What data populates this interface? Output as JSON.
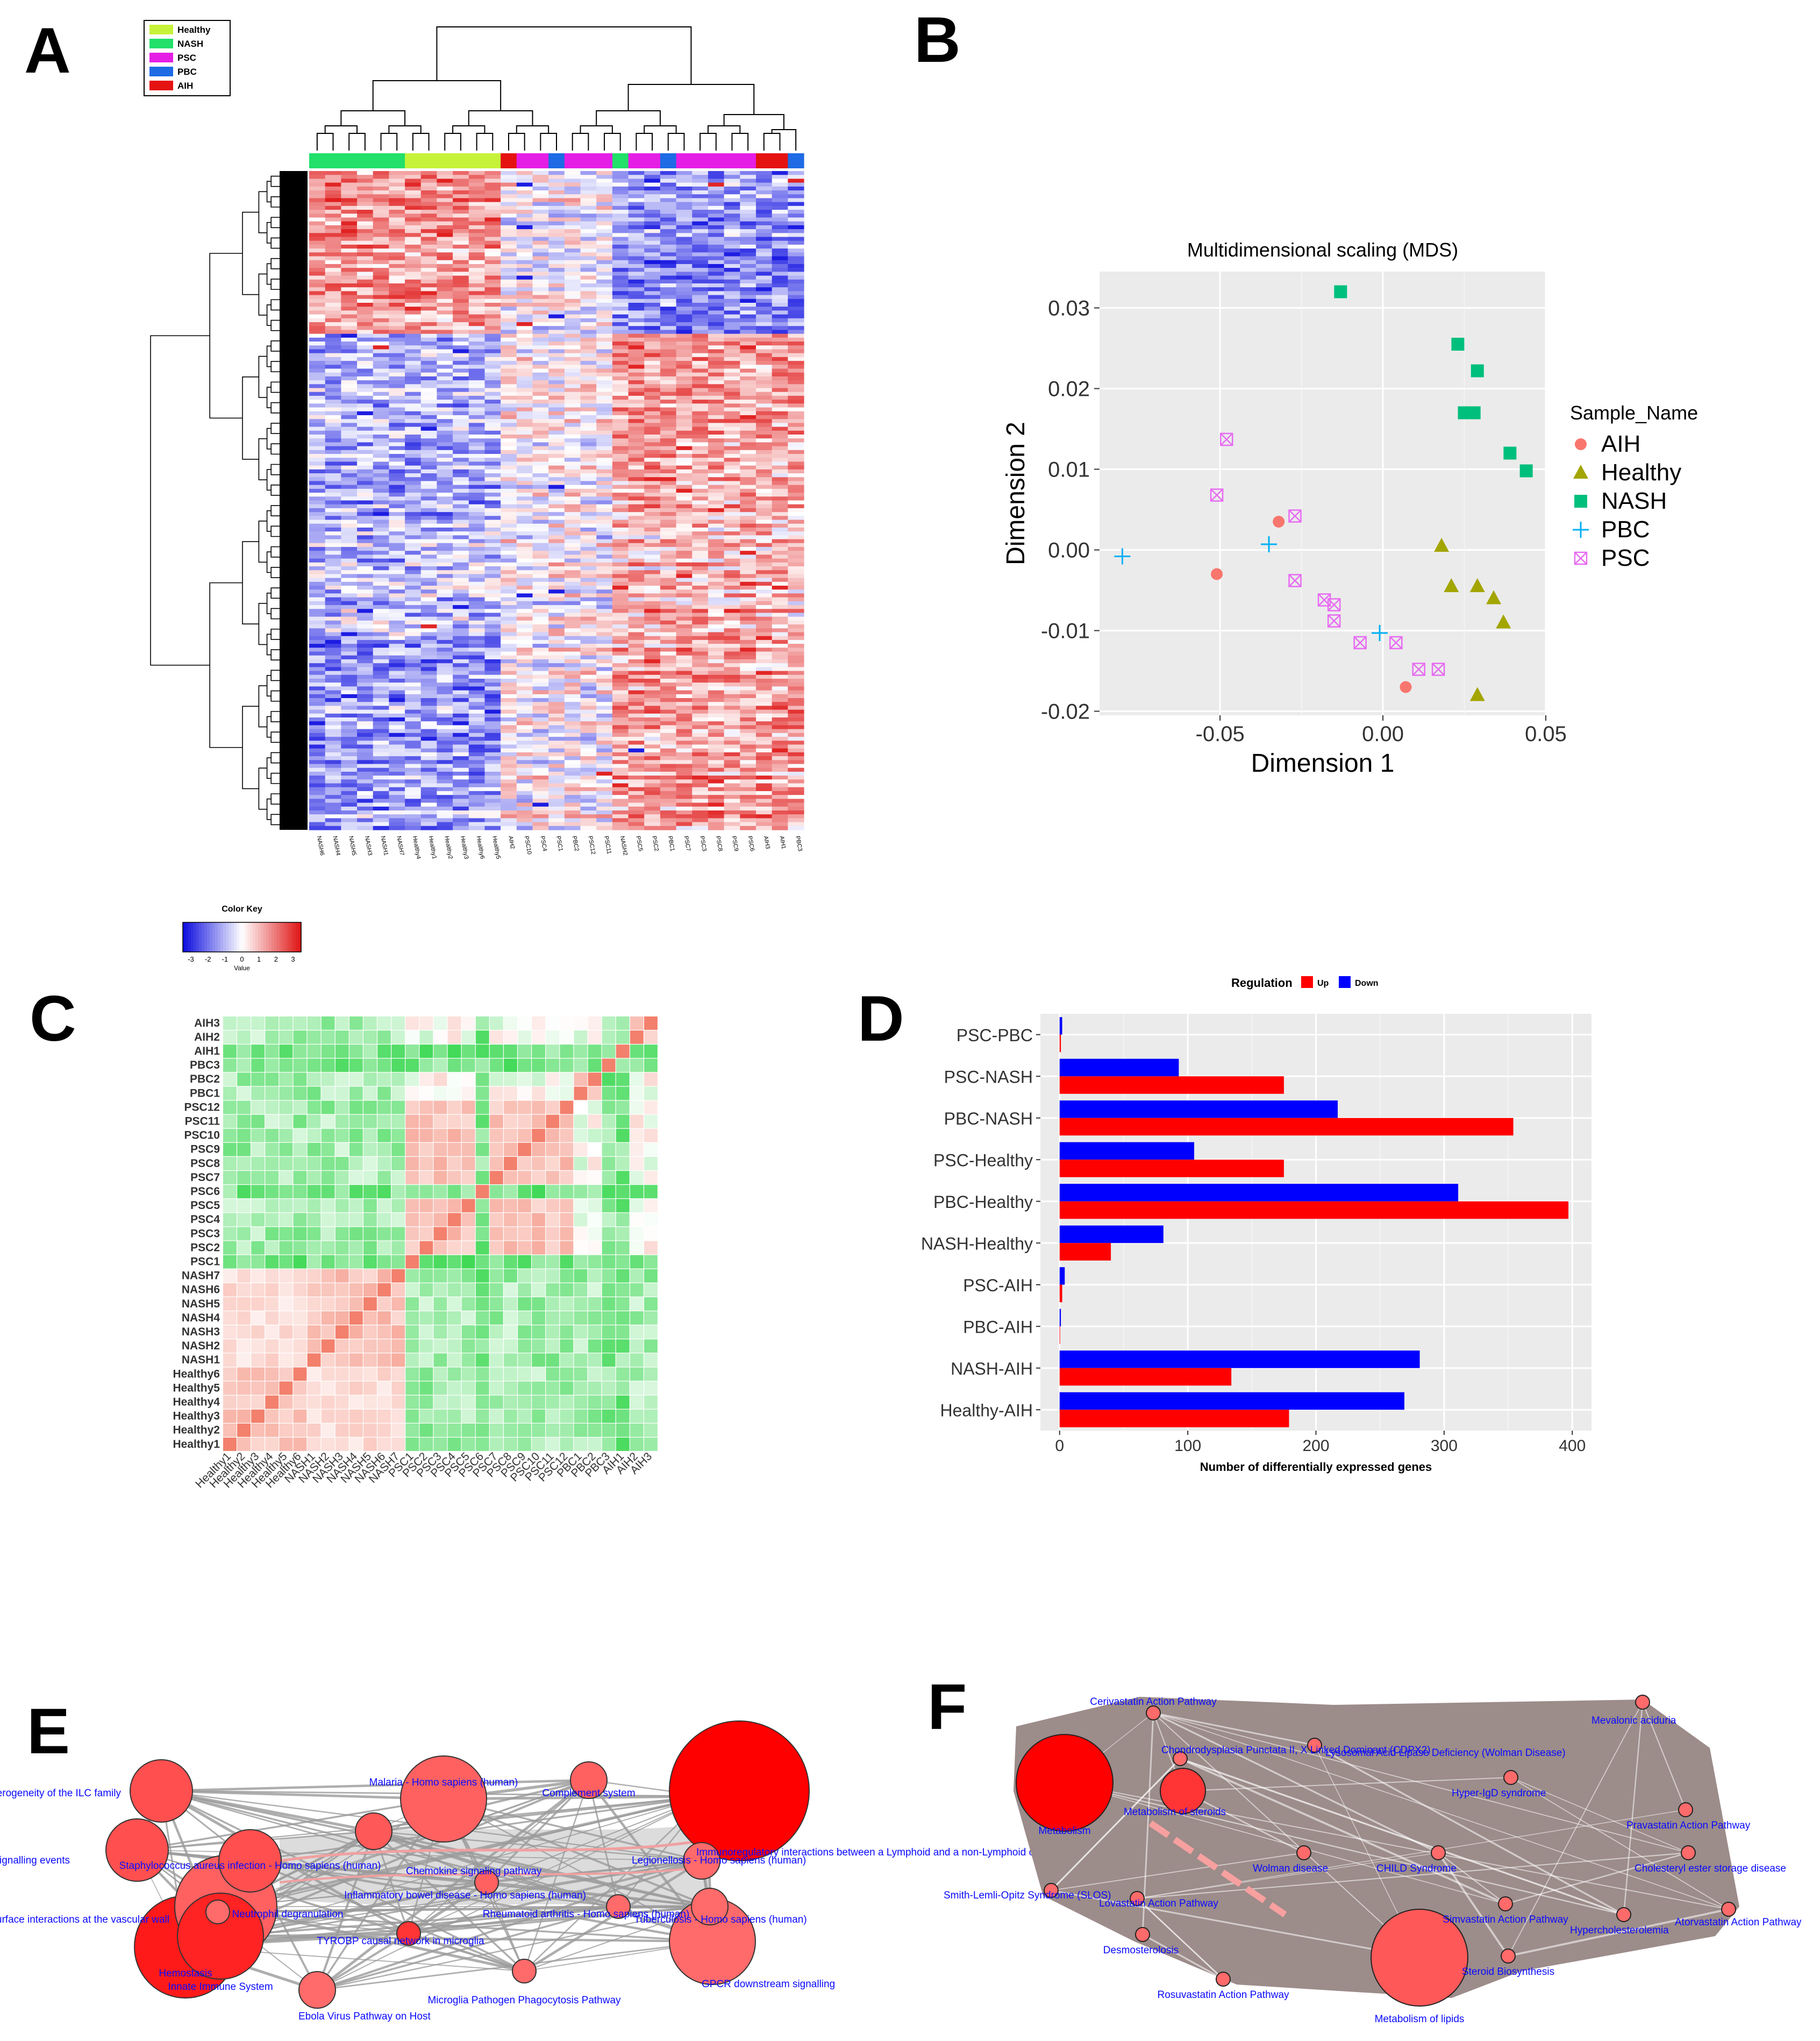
{
  "panels": {
    "A": {
      "letter": "A"
    },
    "B": {
      "letter": "B"
    },
    "C": {
      "letter": "C"
    },
    "D": {
      "letter": "D"
    },
    "E": {
      "letter": "E"
    },
    "F": {
      "letter": "F"
    }
  },
  "colors": {
    "Healthy": "#c6f23a",
    "NASH": "#22e06a",
    "PSC": "#e51ee5",
    "PBC": "#1e6be5",
    "AIH": "#e51212",
    "heat_low": "#1010e0",
    "heat_mid": "#ffffff",
    "heat_high": "#e01818",
    "up": "#ff0000",
    "down": "#0000ff",
    "mds_AIH": "#f8766d",
    "mds_Healthy": "#a3a500",
    "mds_NASH": "#00bf7d",
    "mds_PBC": "#00b0f6",
    "mds_PSC": "#e76bf3",
    "node_dark": "#ff0000",
    "node_light": "#ffb0b0",
    "edge_gray": "#9a9a9a",
    "edge_brown": "#9c8c8a",
    "label_blue": "#0a0aff"
  },
  "chart_data": [
    {
      "id": "A",
      "type": "heatmap",
      "title": "",
      "legend": {
        "entries": [
          "Healthy",
          "NASH",
          "PSC",
          "PBC",
          "AIH"
        ]
      },
      "column_groups": [
        "NASH",
        "NASH",
        "NASH",
        "NASH",
        "NASH",
        "NASH",
        "Healthy",
        "Healthy",
        "Healthy",
        "Healthy",
        "Healthy",
        "Healthy",
        "AIH",
        "PSC",
        "PSC",
        "PBC",
        "PSC",
        "PSC",
        "PSC",
        "NASH",
        "PSC",
        "PSC",
        "PBC",
        "PSC",
        "PSC",
        "PSC",
        "PSC",
        "PSC",
        "AIH",
        "AIH",
        "PBC"
      ],
      "column_labels": [
        "NASH6",
        "NASH4",
        "NASH5",
        "NASH3",
        "NASH1",
        "NASH7",
        "Healthy4",
        "Healthy1",
        "Healthy2",
        "Healthy3",
        "Healthy6",
        "Healthy5",
        "AIH2",
        "PSC10",
        "PSC4",
        "PSC1",
        "PBC2",
        "PSC12",
        "PSC11",
        "NASH2",
        "PSC5",
        "PSC2",
        "PBC1",
        "PSC7",
        "PSC3",
        "PSC8",
        "PSC9",
        "PSC6",
        "AIH3",
        "AIH1",
        "PBC3"
      ]
    },
    {
      "id": "B",
      "type": "scatter",
      "title": "Multidimensional scaling (MDS)",
      "xlabel": "Dimension 1",
      "ylabel": "Dimension 2",
      "xlim": [
        -0.087,
        0.05
      ],
      "ylim": [
        -0.0205,
        0.0345
      ],
      "xticks": [
        -0.05,
        0.0,
        0.05
      ],
      "xtick_labels": [
        "-0.05",
        "0.00",
        "0.05"
      ],
      "yticks": [
        -0.02,
        -0.01,
        0.0,
        0.01,
        0.02,
        0.03
      ],
      "ytick_labels": [
        "-0.02",
        "-0.01",
        "0.00",
        "0.01",
        "0.02",
        "0.03"
      ],
      "legend_title": "Sample_Name",
      "legend": [
        "AIH",
        "Healthy",
        "NASH",
        "PBC",
        "PSC"
      ],
      "series": [
        {
          "name": "AIH",
          "shape": "circle",
          "points": [
            [
              -0.032,
              0.0035
            ],
            [
              -0.051,
              -0.003
            ],
            [
              0.007,
              -0.017
            ]
          ]
        },
        {
          "name": "Healthy",
          "shape": "triangle",
          "points": [
            [
              0.018,
              0.0005
            ],
            [
              0.021,
              -0.0045
            ],
            [
              0.029,
              -0.0045
            ],
            [
              0.034,
              -0.006
            ],
            [
              0.037,
              -0.009
            ],
            [
              0.029,
              -0.018
            ]
          ]
        },
        {
          "name": "NASH",
          "shape": "square",
          "points": [
            [
              -0.013,
              0.032
            ],
            [
              0.023,
              0.0255
            ],
            [
              0.029,
              0.0222
            ],
            [
              0.025,
              0.017
            ],
            [
              0.028,
              0.017
            ],
            [
              0.039,
              0.012
            ],
            [
              0.044,
              0.0098
            ]
          ]
        },
        {
          "name": "PBC",
          "shape": "plus",
          "points": [
            [
              -0.08,
              -0.0008
            ],
            [
              -0.035,
              0.0007
            ],
            [
              -0.001,
              -0.0103
            ]
          ]
        },
        {
          "name": "PSC",
          "shape": "xsquare",
          "points": [
            [
              -0.048,
              0.0137
            ],
            [
              -0.051,
              0.0068
            ],
            [
              -0.027,
              0.0042
            ],
            [
              -0.027,
              -0.0038
            ],
            [
              -0.018,
              -0.0062
            ],
            [
              -0.015,
              -0.0068
            ],
            [
              -0.015,
              -0.0088
            ],
            [
              -0.007,
              -0.0115
            ],
            [
              0.004,
              -0.0115
            ],
            [
              0.011,
              -0.0148
            ],
            [
              0.017,
              -0.0148
            ]
          ]
        }
      ]
    },
    {
      "id": "C",
      "type": "heatmap",
      "color_key": {
        "title": "Color Key",
        "xlabel": "Value",
        "ticks": [
          "-3",
          "-2",
          "-1",
          "0",
          "1",
          "2",
          "3"
        ]
      },
      "row_labels": [
        "AIH3",
        "AIH2",
        "AIH1",
        "PBC3",
        "PBC2",
        "PBC1",
        "PSC12",
        "PSC11",
        "PSC10",
        "PSC9",
        "PSC8",
        "PSC7",
        "PSC6",
        "PSC5",
        "PSC4",
        "PSC3",
        "PSC2",
        "PSC1",
        "NASH7",
        "NASH6",
        "NASH5",
        "NASH4",
        "NASH3",
        "NASH2",
        "NASH1",
        "Healthy6",
        "Healthy5",
        "Healthy4",
        "Healthy3",
        "Healthy2",
        "Healthy1"
      ],
      "column_labels": [
        "Healthy1",
        "Healthy2",
        "Healthy3",
        "Healthy4",
        "Healthy5",
        "Healthy6",
        "NASH1",
        "NASH2",
        "NASH3",
        "NASH4",
        "NASH5",
        "NASH6",
        "NASH7",
        "PSC1",
        "PSC2",
        "PSC3",
        "PSC4",
        "PSC5",
        "PSC6",
        "PSC7",
        "PSC8",
        "PSC9",
        "PSC10",
        "PSC11",
        "PSC12",
        "PBC1",
        "PBC2",
        "PBC3",
        "AIH1",
        "AIH2",
        "AIH3"
      ]
    },
    {
      "id": "D",
      "type": "bar",
      "orientation": "horizontal",
      "legend_title": "Regulation",
      "legend": [
        "Up",
        "Down"
      ],
      "xlabel": "Number of differentially expressed genes",
      "xlim": [
        -15,
        415
      ],
      "xticks": [
        0,
        100,
        200,
        300,
        400
      ],
      "xtick_labels": [
        "0",
        "100",
        "200",
        "300",
        "400"
      ],
      "categories": [
        "PSC-PBC",
        "PSC-NASH",
        "PBC-NASH",
        "PSC-Healthy",
        "PBC-Healthy",
        "NASH-Healthy",
        "PSC-AIH",
        "PBC-AIH",
        "NASH-AIH",
        "Healthy-AIH"
      ],
      "series": [
        {
          "name": "Down",
          "values": [
            2,
            93,
            217,
            105,
            311,
            81,
            4,
            1,
            281,
            269
          ]
        },
        {
          "name": "Up",
          "values": [
            1,
            175,
            354,
            175,
            397,
            40,
            2,
            0,
            134,
            179
          ]
        }
      ]
    },
    {
      "id": "E",
      "type": "network",
      "nodes": [
        {
          "label": "Development and heterogeneity of the ILC family",
          "size": 3,
          "shade": 0.55
        },
        {
          "label": "G alpha (i) signalling events",
          "size": 3,
          "shade": 0.55
        },
        {
          "label": "Cell surface interactions at the vascular wall",
          "size": 1,
          "shade": 0.4
        },
        {
          "label": "Staphylococcus aureus infection - Homo sapiens (human)",
          "size": 3,
          "shade": 0.55
        },
        {
          "label": "Neutrophil degranulation",
          "size": 5,
          "shade": 0.45
        },
        {
          "label": "Hemostasis",
          "size": 5,
          "shade": 0.85
        },
        {
          "label": "Innate Immune System",
          "size": 4,
          "shade": 0.8
        },
        {
          "label": "Malaria - Homo sapiens (human)",
          "size": 4,
          "shade": 0.45
        },
        {
          "label": "Complement system",
          "size": 2,
          "shade": 0.45
        },
        {
          "label": "Chemokine signaling pathway",
          "size": 2,
          "shade": 0.5
        },
        {
          "label": "Immunoregulatory interactions between a Lymphoid and a non-Lymphoid cell",
          "size": 3,
          "shade": 1.0
        },
        {
          "label": "Inflammatory bowel disease - Homo sapiens (human)",
          "size": 1,
          "shade": 0.45
        },
        {
          "label": "Legionellosis - Homo sapiens (human)",
          "size": 2,
          "shade": 0.4
        },
        {
          "label": "Rheumatoid arthritis - Homo sapiens (human)",
          "size": 1,
          "shade": 0.4
        },
        {
          "label": "Tuberculosis - Homo sapiens (human)",
          "size": 2,
          "shade": 0.4
        },
        {
          "label": "TYROBP causal network in microglia",
          "size": 1,
          "shade": 0.7
        },
        {
          "label": "GPCR downstream signalling",
          "size": 4,
          "shade": 0.4
        },
        {
          "label": "Ebola Virus Pathway on Host",
          "size": 2,
          "shade": 0.4
        },
        {
          "label": "Microglia Pathogen Phagocytosis Pathway",
          "size": 1,
          "shade": 0.4
        }
      ]
    },
    {
      "id": "F",
      "type": "network",
      "nodes": [
        {
          "label": "Cerivastatin Action Pathway",
          "size": 1,
          "shade": 0.4
        },
        {
          "label": "Chondrodysplasia Punctata II, X Linked Dominant (CDPX2)",
          "size": 1,
          "shade": 0.4
        },
        {
          "label": "Lysosomal Acid Lipase Deficiency (Wolman Disease)",
          "size": 1,
          "shade": 0.4
        },
        {
          "label": "Mevalonic aciduria",
          "size": 1,
          "shade": 0.4
        },
        {
          "label": "Hyper-IgD syndrome",
          "size": 1,
          "shade": 0.4
        },
        {
          "label": "Metabolism of steroids",
          "size": 3,
          "shade": 0.7
        },
        {
          "label": "Metabolism",
          "size": 5,
          "shade": 1.0
        },
        {
          "label": "Pravastatin Action Pathway",
          "size": 1,
          "shade": 0.4
        },
        {
          "label": "Wolman disease",
          "size": 1,
          "shade": 0.4
        },
        {
          "label": "CHILD Syndrome",
          "size": 1,
          "shade": 0.4
        },
        {
          "label": "Cholesteryl ester storage disease",
          "size": 1,
          "shade": 0.4
        },
        {
          "label": "Smith-Lemli-Opitz Syndrome (SLOS)",
          "size": 1,
          "shade": 0.4
        },
        {
          "label": "Lovastatin Action Pathway",
          "size": 1,
          "shade": 0.4
        },
        {
          "label": "Simvastatin Action Pathway",
          "size": 1,
          "shade": 0.4
        },
        {
          "label": "Hypercholesterolemia",
          "size": 1,
          "shade": 0.4
        },
        {
          "label": "Atorvastatin Action Pathway",
          "size": 1,
          "shade": 0.4
        },
        {
          "label": "Desmosterolosis",
          "size": 1,
          "shade": 0.4
        },
        {
          "label": "Steroid Biosynthesis",
          "size": 1,
          "shade": 0.4
        },
        {
          "label": "Rosuvastatin Action Pathway",
          "size": 1,
          "shade": 0.4
        },
        {
          "label": "Metabolism of lipids",
          "size": 5,
          "shade": 0.5
        }
      ]
    }
  ]
}
